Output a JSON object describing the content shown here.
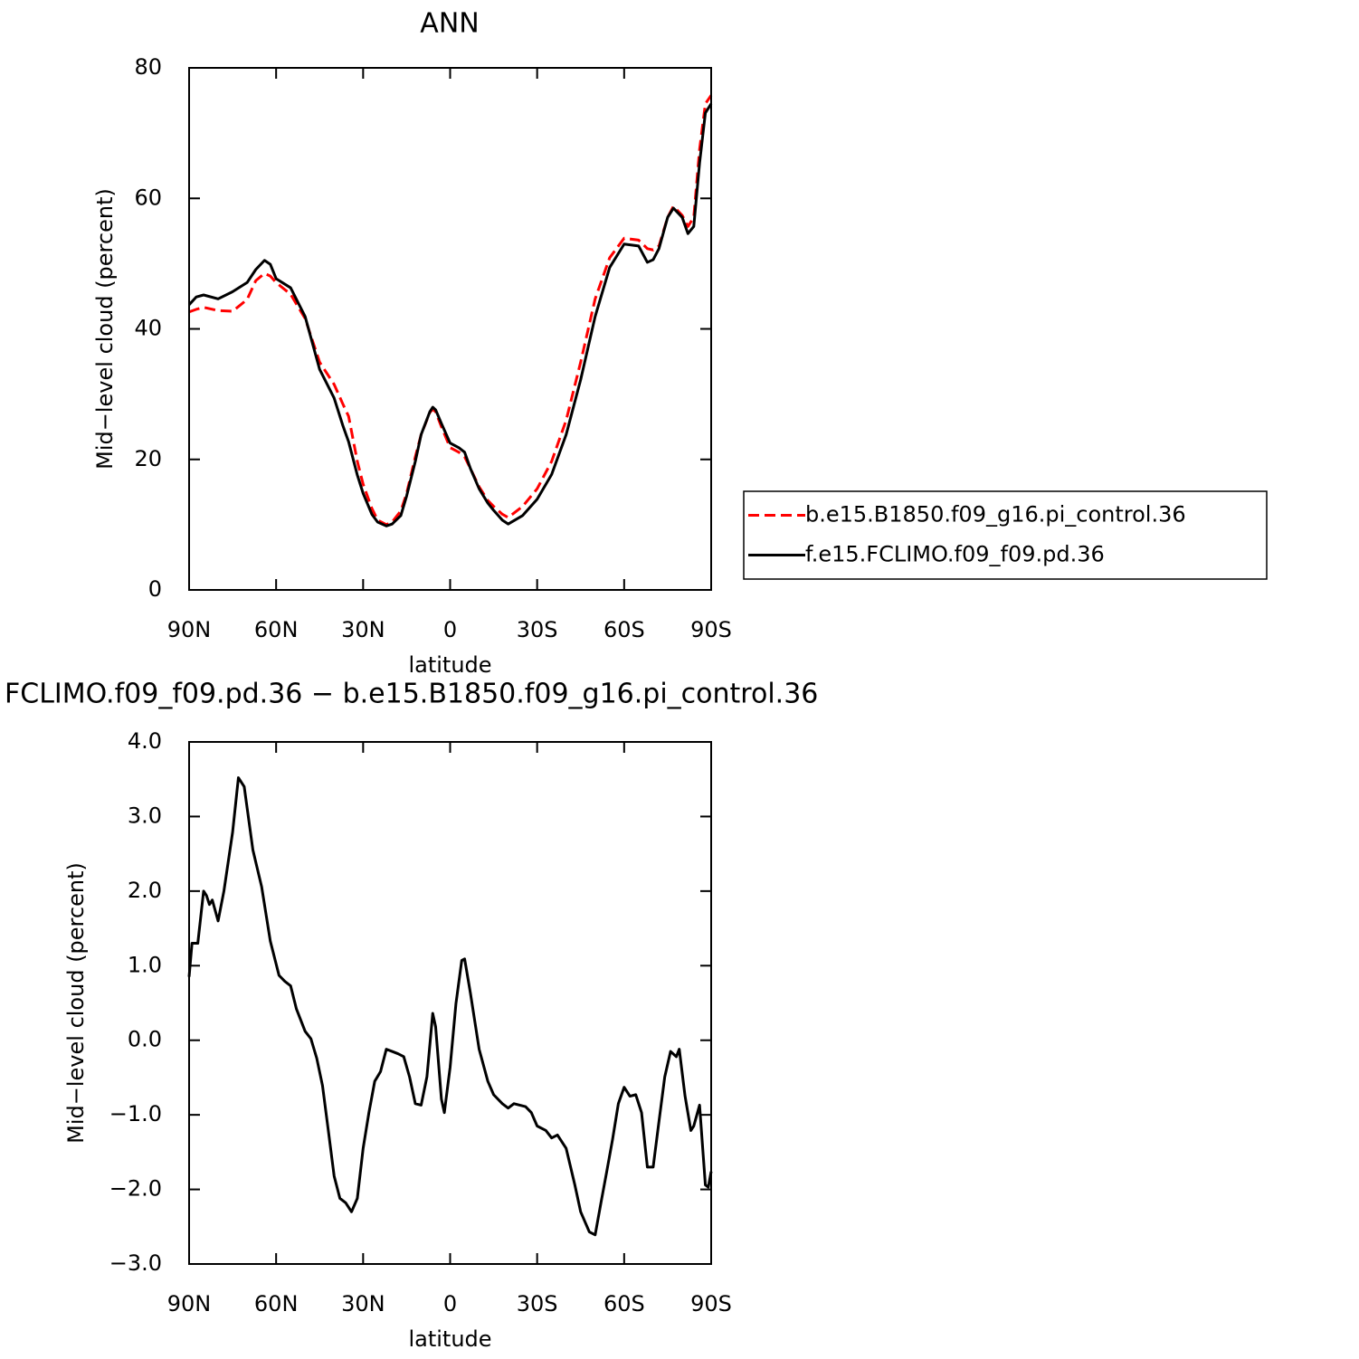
{
  "chart_data": [
    {
      "type": "line",
      "title": "ANN",
      "xlabel": "latitude",
      "ylabel": "Mid−level cloud (percent)",
      "x": [
        90,
        87.5,
        85,
        80,
        75,
        70,
        67,
        64,
        62,
        60,
        55,
        50,
        45,
        40,
        37,
        35,
        32,
        30,
        27,
        25,
        22,
        20,
        17,
        15,
        12,
        10,
        7,
        6,
        5,
        3,
        0,
        -3,
        -5,
        -7,
        -10,
        -13,
        -15,
        -18,
        -20,
        -25,
        -30,
        -35,
        -40,
        -45,
        -50,
        -55,
        -60,
        -65,
        -68,
        -70,
        -72,
        -75,
        -77,
        -80,
        -82,
        -84,
        -86,
        -88,
        -90
      ],
      "series": [
        {
          "name": "b.e15.B1850.f09_g16.pi_control.36",
          "color": "#ff0000",
          "dash": true,
          "values": [
            42.6,
            43.0,
            43.3,
            42.8,
            42.7,
            44.5,
            47.4,
            48.5,
            48.1,
            47.1,
            45.3,
            41.6,
            34.9,
            31.5,
            28.5,
            26.6,
            19.7,
            16.2,
            12.5,
            10.7,
            10.0,
            10.4,
            12.1,
            14.8,
            20.4,
            23.8,
            27.2,
            27.7,
            27.3,
            25.0,
            21.8,
            21.1,
            20.4,
            18.6,
            15.8,
            13.7,
            12.8,
            11.6,
            11.1,
            12.8,
            15.5,
            19.7,
            26.0,
            34.9,
            44.6,
            50.9,
            53.9,
            53.6,
            52.3,
            52.1,
            52.7,
            57.1,
            58.8,
            57.4,
            55.7,
            57.1,
            67.5,
            74.5,
            75.8
          ]
        },
        {
          "name": "f.e15.FCLIMO.f09_f09.pd.36",
          "color": "#000000",
          "dash": false,
          "values": [
            43.7,
            44.9,
            45.2,
            44.6,
            45.7,
            47.1,
            49.1,
            50.5,
            49.9,
            47.7,
            46.3,
            41.9,
            33.8,
            29.4,
            25.2,
            22.7,
            17.6,
            14.8,
            11.6,
            10.4,
            9.8,
            10.1,
            11.4,
            14.4,
            19.7,
            23.8,
            27.3,
            28.0,
            27.6,
            25.5,
            22.5,
            21.8,
            21.1,
            18.6,
            15.5,
            13.3,
            12.2,
            10.7,
            10.1,
            11.4,
            13.9,
            17.7,
            23.8,
            32.2,
            41.9,
            49.4,
            53.0,
            52.7,
            50.2,
            50.6,
            52.3,
            57.1,
            58.5,
            57.1,
            54.6,
            55.7,
            65.4,
            73.1,
            74.5
          ]
        }
      ],
      "xlim": [
        90,
        -90
      ],
      "xticks": [
        {
          "value": 90,
          "label": "90N"
        },
        {
          "value": 60,
          "label": "60N"
        },
        {
          "value": 30,
          "label": "30N"
        },
        0,
        {
          "value": -30,
          "label": "30S"
        },
        {
          "value": -60,
          "label": "60S"
        },
        {
          "value": -90,
          "label": "90S"
        }
      ],
      "ylim": [
        0,
        80
      ],
      "yticks": [
        0,
        20,
        40,
        60,
        80
      ],
      "legend": "right"
    },
    {
      "type": "line",
      "title": "FCLIMO.f09_f09.pd.36 − b.e15.B1850.f09_g16.pi_control.36",
      "xlabel": "latitude",
      "ylabel": "Mid−level cloud (percent)",
      "x": [
        90,
        89,
        87,
        85,
        84,
        83,
        82,
        80,
        78,
        75,
        73,
        71,
        68,
        65,
        62,
        59,
        57,
        55,
        53,
        50,
        48,
        46,
        44,
        42,
        40,
        38,
        36,
        34,
        32,
        30,
        28,
        26,
        24,
        22,
        20,
        18,
        16,
        14,
        12,
        10,
        8,
        6,
        5,
        3,
        2,
        0,
        -2,
        -4,
        -5,
        -7,
        -10,
        -13,
        -15,
        -18,
        -20,
        -22,
        -24,
        -26,
        -28,
        -30,
        -33,
        -35,
        -37,
        -40,
        -43,
        -45,
        -48,
        -50,
        -52,
        -54,
        -56,
        -58,
        -60,
        -62,
        -64,
        -66,
        -68,
        -70,
        -72,
        -74,
        -76,
        -78,
        -79,
        -81,
        -83,
        -84,
        -86,
        -88,
        -89,
        -90
      ],
      "series": [
        {
          "color": "#000000",
          "dash": false,
          "values": [
            0.85,
            1.3,
            1.3,
            2.0,
            1.94,
            1.82,
            1.88,
            1.6,
            2.0,
            2.79,
            3.52,
            3.4,
            2.55,
            2.06,
            1.33,
            0.87,
            0.79,
            0.73,
            0.42,
            0.12,
            0.02,
            -0.24,
            -0.61,
            -1.21,
            -1.82,
            -2.12,
            -2.18,
            -2.3,
            -2.12,
            -1.45,
            -0.97,
            -0.55,
            -0.42,
            -0.12,
            -0.15,
            -0.18,
            -0.22,
            -0.49,
            -0.85,
            -0.87,
            -0.49,
            0.36,
            0.18,
            -0.79,
            -0.97,
            -0.36,
            0.49,
            1.07,
            1.09,
            0.63,
            -0.12,
            -0.55,
            -0.73,
            -0.85,
            -0.91,
            -0.85,
            -0.87,
            -0.89,
            -0.97,
            -1.15,
            -1.21,
            -1.31,
            -1.27,
            -1.45,
            -1.94,
            -2.3,
            -2.57,
            -2.61,
            -2.18,
            -1.76,
            -1.33,
            -0.85,
            -0.63,
            -0.75,
            -0.73,
            -0.97,
            -1.7,
            -1.7,
            -1.09,
            -0.49,
            -0.15,
            -0.22,
            -0.12,
            -0.75,
            -1.21,
            -1.15,
            -0.87,
            -1.94,
            -1.97,
            -1.76
          ]
        }
      ],
      "xlim": [
        90,
        -90
      ],
      "xticks": [
        {
          "value": 90,
          "label": "90N"
        },
        {
          "value": 60,
          "label": "60N"
        },
        {
          "value": 30,
          "label": "30N"
        },
        0,
        {
          "value": -30,
          "label": "30S"
        },
        {
          "value": -60,
          "label": "60S"
        },
        {
          "value": -90,
          "label": "90S"
        }
      ],
      "ylim": [
        -3,
        4
      ],
      "yticks": [
        {
          "value": -3,
          "label": "−3.0"
        },
        {
          "value": -2,
          "label": "−2.0"
        },
        {
          "value": -1,
          "label": "−1.0"
        },
        {
          "value": 0,
          "label": "0.0"
        },
        {
          "value": 1,
          "label": "1.0"
        },
        {
          "value": 2,
          "label": "2.0"
        },
        {
          "value": 3,
          "label": "3.0"
        },
        {
          "value": 4,
          "label": "4.0"
        }
      ]
    }
  ]
}
